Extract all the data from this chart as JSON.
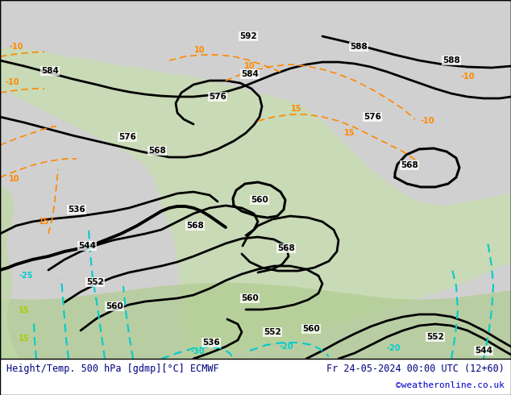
{
  "title_left": "Height/Temp. 500 hPa [gdmp][°C] ECMWF",
  "title_right": "Fr 24-05-2024 00:00 UTC (12+60)",
  "credit": "©weatheronline.co.uk",
  "bg_color": "#d0d0d0",
  "land_color_green": "#c8ddb0",
  "africa_color": "#b0cc90",
  "text_color": "#1a1a1a",
  "credit_color": "#0000cc",
  "title_color": "#000080"
}
